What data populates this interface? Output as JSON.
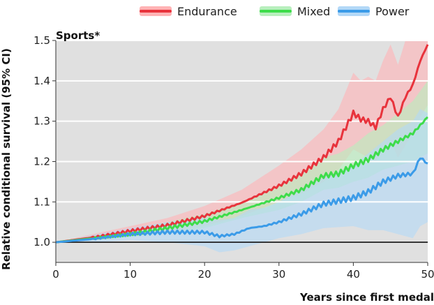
{
  "chart_data": {
    "type": "line",
    "title": "Sports*",
    "xlabel": "Years since first medal",
    "ylabel": "Relative conditional survival (95% CI)",
    "xlim": [
      0,
      50
    ],
    "ylim": [
      0.95,
      1.5
    ],
    "baseline": 1.0,
    "x_ticks": [
      0,
      10,
      20,
      30,
      40,
      50
    ],
    "x_tick_labels": [
      "0",
      "10",
      "20",
      "30",
      "40",
      "50"
    ],
    "y_ticks": [
      1.0,
      1.1,
      1.2,
      1.3,
      1.4,
      1.5
    ],
    "y_tick_labels": [
      "1.0",
      "1.1",
      "1.2",
      "1.3",
      "1.4",
      "1.5"
    ],
    "grid": "horizontal",
    "legend_position": "top",
    "series": [
      {
        "name": "Endurance",
        "color": "#e8333c",
        "band_color": "#ffb3b5",
        "x": [
          0,
          5,
          10,
          15,
          20,
          25,
          30,
          33,
          36,
          38,
          40,
          41,
          42,
          43,
          44,
          45,
          46,
          47,
          48,
          49,
          50
        ],
        "y": [
          1.0,
          1.012,
          1.028,
          1.042,
          1.065,
          1.098,
          1.14,
          1.17,
          1.21,
          1.25,
          1.32,
          1.305,
          1.3,
          1.285,
          1.33,
          1.36,
          1.31,
          1.36,
          1.39,
          1.45,
          1.49
        ],
        "lower": [
          1.0,
          1.005,
          1.015,
          1.025,
          1.04,
          1.065,
          1.1,
          1.12,
          1.15,
          1.18,
          1.23,
          1.22,
          1.21,
          1.2,
          1.23,
          1.25,
          1.21,
          1.24,
          1.27,
          1.31,
          1.34
        ],
        "upper": [
          1.0,
          1.02,
          1.04,
          1.06,
          1.09,
          1.13,
          1.19,
          1.23,
          1.28,
          1.33,
          1.42,
          1.4,
          1.41,
          1.4,
          1.45,
          1.49,
          1.44,
          1.5,
          1.5,
          1.5,
          1.5
        ]
      },
      {
        "name": "Mixed",
        "color": "#3ddc4a",
        "band_color": "#b8efbd",
        "x": [
          0,
          5,
          10,
          15,
          20,
          25,
          30,
          33,
          36,
          38,
          40,
          42,
          44,
          46,
          48,
          50
        ],
        "y": [
          1.0,
          1.01,
          1.02,
          1.035,
          1.052,
          1.08,
          1.11,
          1.13,
          1.165,
          1.17,
          1.19,
          1.205,
          1.23,
          1.25,
          1.27,
          1.31
        ],
        "lower": [
          1.0,
          1.005,
          1.012,
          1.022,
          1.035,
          1.06,
          1.08,
          1.1,
          1.13,
          1.135,
          1.15,
          1.16,
          1.18,
          1.19,
          1.2,
          1.22
        ],
        "upper": [
          1.0,
          1.015,
          1.03,
          1.05,
          1.07,
          1.1,
          1.14,
          1.17,
          1.21,
          1.22,
          1.24,
          1.27,
          1.29,
          1.32,
          1.35,
          1.4
        ]
      },
      {
        "name": "Power",
        "color": "#3b9be8",
        "band_color": "#b3d8f7",
        "x": [
          0,
          5,
          10,
          15,
          20,
          22,
          24,
          26,
          28,
          30,
          33,
          36,
          40,
          42,
          44,
          46,
          48,
          49,
          50
        ],
        "y": [
          1.0,
          1.008,
          1.02,
          1.025,
          1.025,
          1.015,
          1.02,
          1.035,
          1.04,
          1.05,
          1.07,
          1.095,
          1.11,
          1.125,
          1.15,
          1.165,
          1.17,
          1.21,
          1.195
        ],
        "lower": [
          1.0,
          1.0,
          1.005,
          1.0,
          0.99,
          0.975,
          0.98,
          0.99,
          1.0,
          1.01,
          1.02,
          1.035,
          1.04,
          1.03,
          1.03,
          1.02,
          1.01,
          1.04,
          1.05
        ],
        "upper": [
          1.0,
          1.018,
          1.035,
          1.05,
          1.06,
          1.055,
          1.06,
          1.08,
          1.085,
          1.1,
          1.13,
          1.16,
          1.19,
          1.22,
          1.25,
          1.28,
          1.3,
          1.33,
          1.32
        ]
      }
    ]
  }
}
